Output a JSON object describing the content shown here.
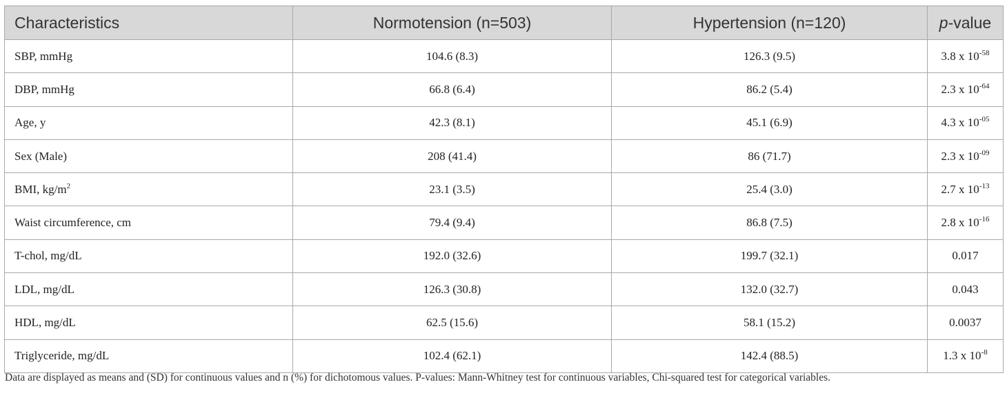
{
  "table": {
    "headers": {
      "characteristics": "Characteristics",
      "normotension": "Normotension (n=503)",
      "hypertension": "Hypertension (n=120)",
      "pvalue_italic": "p",
      "pvalue_rest": "-value"
    },
    "rows": [
      {
        "label": "SBP, mmHg",
        "norm": "104.6 (8.3)",
        "hyper": "126.3 (9.5)",
        "p_base": "3.8 x 10",
        "p_exp": "-58"
      },
      {
        "label": "DBP, mmHg",
        "norm": "66.8 (6.4)",
        "hyper": "86.2 (5.4)",
        "p_base": "2.3 x 10",
        "p_exp": "-64"
      },
      {
        "label": "Age, y",
        "norm": "42.3 (8.1)",
        "hyper": "45.1 (6.9)",
        "p_base": "4.3 x 10",
        "p_exp": "-05"
      },
      {
        "label": "Sex (Male)",
        "norm": "208 (41.4)",
        "hyper": "86 (71.7)",
        "p_base": "2.3 x 10",
        "p_exp": "-09"
      },
      {
        "label": "BMI, kg/m",
        "label_sup": "2",
        "norm": "23.1 (3.5)",
        "hyper": "25.4 (3.0)",
        "p_base": "2.7 x 10",
        "p_exp": "-13"
      },
      {
        "label": "Waist circumference, cm",
        "norm": "79.4 (9.4)",
        "hyper": "86.8 (7.5)",
        "p_base": "2.8 x 10",
        "p_exp": "-16"
      },
      {
        "label": "T-chol, mg/dL",
        "norm": "192.0 (32.6)",
        "hyper": "199.7 (32.1)",
        "p_base": "0.017"
      },
      {
        "label": "LDL, mg/dL",
        "norm": "126.3 (30.8)",
        "hyper": "132.0 (32.7)",
        "p_base": "0.043"
      },
      {
        "label": "HDL, mg/dL",
        "norm": "62.5 (15.6)",
        "hyper": "58.1 (15.2)",
        "p_base": "0.0037"
      },
      {
        "label": "Triglyceride, mg/dL",
        "norm": "102.4 (62.1)",
        "hyper": "142.4 (88.5)",
        "p_base": "1.3 x 10",
        "p_exp": "-8"
      }
    ]
  },
  "footnote": "Data are displayed as means and (SD) for continuous values and n (%) for dichotomous values. P-values: Mann-Whitney test for continuous variables, Chi-squared test for categorical variables."
}
